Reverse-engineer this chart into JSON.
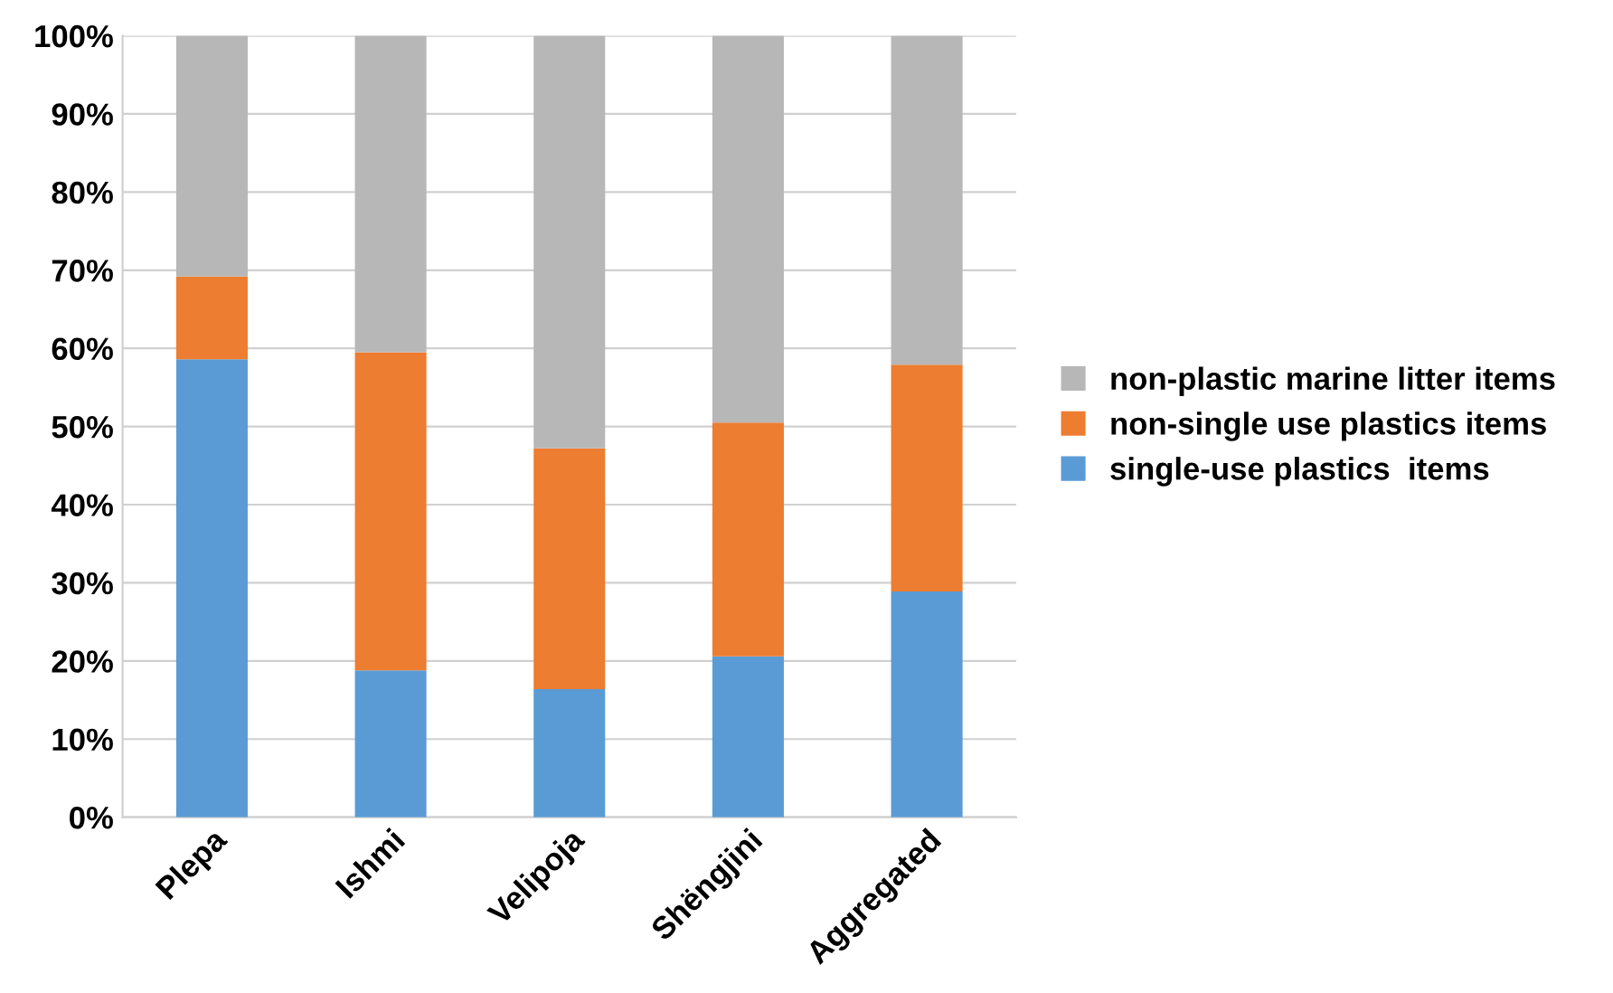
{
  "chart_data": {
    "type": "bar",
    "stacked": true,
    "categories": [
      "Plepa",
      "Ishmi",
      "Velipoja",
      "Shëngjini",
      "Aggregated"
    ],
    "series": [
      {
        "name": "single-use plastics  items",
        "color": "#5b9bd5",
        "values": [
          58.6,
          18.8,
          16.4,
          20.6,
          28.9
        ]
      },
      {
        "name": "non-single use plastics items",
        "color": "#ed7d31",
        "values": [
          10.6,
          40.7,
          30.8,
          29.9,
          29.0
        ]
      },
      {
        "name": "non-plastic marine litter items",
        "color": "#b7b7b7",
        "values": [
          30.8,
          40.5,
          52.8,
          49.5,
          42.1
        ]
      }
    ],
    "ylim": [
      0,
      100
    ],
    "yticks": [
      {
        "value": 0,
        "label": "0%"
      },
      {
        "value": 10,
        "label": "10%"
      },
      {
        "value": 20,
        "label": "20%"
      },
      {
        "value": 30,
        "label": "30%"
      },
      {
        "value": 40,
        "label": "40%"
      },
      {
        "value": 50,
        "label": "50%"
      },
      {
        "value": 60,
        "label": "60%"
      },
      {
        "value": 70,
        "label": "70%"
      },
      {
        "value": 80,
        "label": "80%"
      },
      {
        "value": 90,
        "label": "90%"
      },
      {
        "value": 100,
        "label": "100%"
      }
    ],
    "grid": "y",
    "legend": "right"
  }
}
